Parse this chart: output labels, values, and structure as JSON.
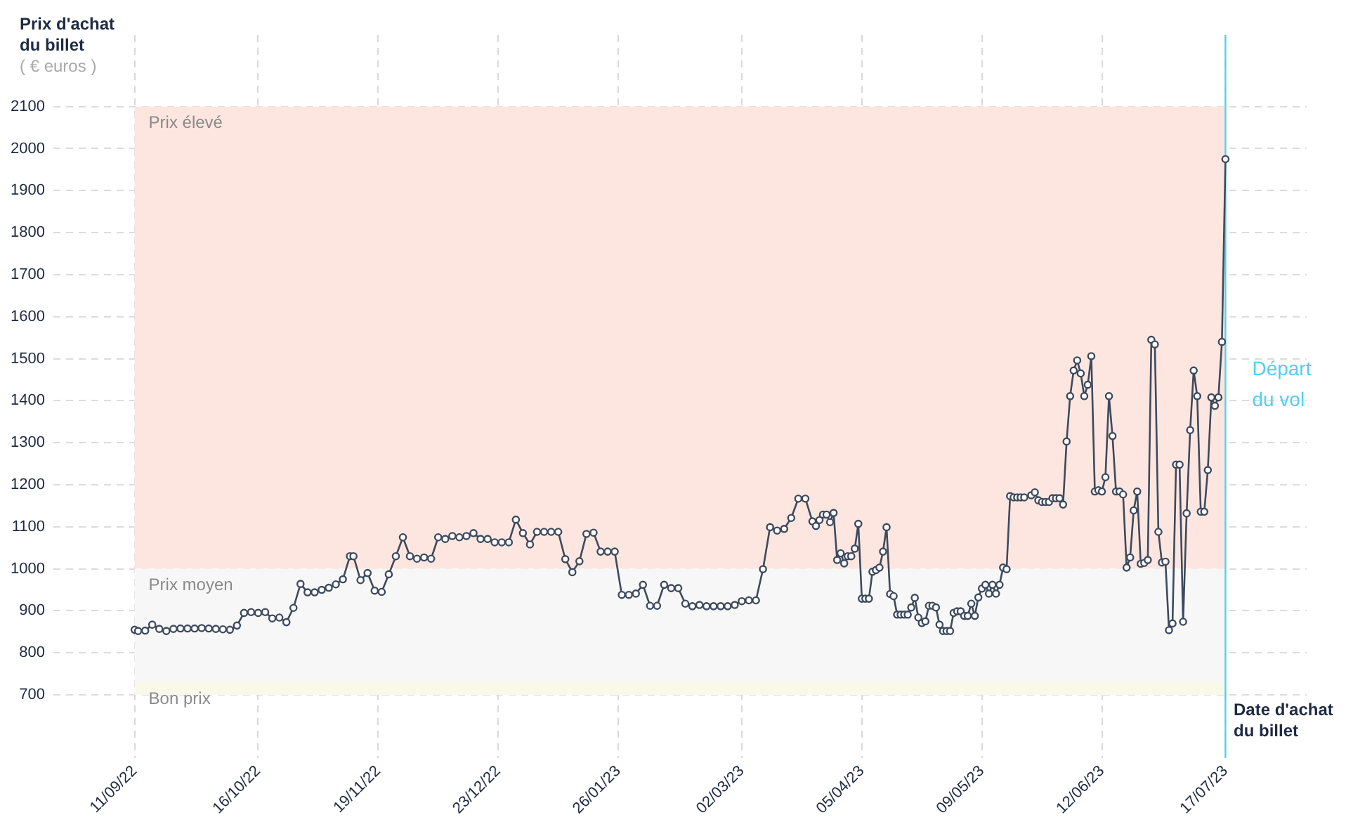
{
  "chart_data": {
    "type": "line",
    "ylabel": "Prix d'achat du billet",
    "xlabel": "Date d'achat du billet",
    "annotations": [
      "( € euros )"
    ],
    "x": [
      "2022-09-11",
      "2022-09-12",
      "2022-09-14",
      "2022-09-16",
      "2022-09-18",
      "2022-09-20",
      "2022-09-22",
      "2022-09-24",
      "2022-09-26",
      "2022-09-28",
      "2022-09-30",
      "2022-10-02",
      "2022-10-04",
      "2022-10-06",
      "2022-10-08",
      "2022-10-10",
      "2022-10-12",
      "2022-10-14",
      "2022-10-16",
      "2022-10-18",
      "2022-10-20",
      "2022-10-22",
      "2022-10-24",
      "2022-10-26",
      "2022-10-28",
      "2022-10-30",
      "2022-11-01",
      "2022-11-03",
      "2022-11-05",
      "2022-11-07",
      "2022-11-09",
      "2022-11-11",
      "2022-11-12",
      "2022-11-14",
      "2022-11-16",
      "2022-11-18",
      "2022-11-20",
      "2022-11-22",
      "2022-11-24",
      "2022-11-26",
      "2022-11-28",
      "2022-11-30",
      "2022-12-02",
      "2022-12-04",
      "2022-12-06",
      "2022-12-08",
      "2022-12-10",
      "2022-12-12",
      "2022-12-14",
      "2022-12-16",
      "2022-12-18",
      "2022-12-20",
      "2022-12-22",
      "2022-12-24",
      "2022-12-26",
      "2022-12-28",
      "2022-12-30",
      "2023-01-01",
      "2023-01-03",
      "2023-01-05",
      "2023-01-07",
      "2023-01-09",
      "2023-01-11",
      "2023-01-13",
      "2023-01-15",
      "2023-01-17",
      "2023-01-19",
      "2023-01-21",
      "2023-01-23",
      "2023-01-25",
      "2023-01-27",
      "2023-01-29",
      "2023-01-31",
      "2023-02-02",
      "2023-02-04",
      "2023-02-06",
      "2023-02-08",
      "2023-02-10",
      "2023-02-12",
      "2023-02-14",
      "2023-02-16",
      "2023-02-18",
      "2023-02-20",
      "2023-02-22",
      "2023-02-24",
      "2023-02-26",
      "2023-02-28",
      "2023-03-02",
      "2023-03-04",
      "2023-03-06",
      "2023-03-08",
      "2023-03-10",
      "2023-03-12",
      "2023-03-14",
      "2023-03-16",
      "2023-03-18",
      "2023-03-20",
      "2023-03-22",
      "2023-03-23",
      "2023-03-24",
      "2023-03-25",
      "2023-03-26",
      "2023-03-27",
      "2023-03-28",
      "2023-03-29",
      "2023-03-30",
      "2023-03-31",
      "2023-04-01",
      "2023-04-02",
      "2023-04-03",
      "2023-04-04",
      "2023-04-05",
      "2023-04-06",
      "2023-04-07",
      "2023-04-08",
      "2023-04-09",
      "2023-04-10",
      "2023-04-11",
      "2023-04-12",
      "2023-04-13",
      "2023-04-14",
      "2023-04-15",
      "2023-04-16",
      "2023-04-17",
      "2023-04-18",
      "2023-04-19",
      "2023-04-20",
      "2023-04-21",
      "2023-04-22",
      "2023-04-23",
      "2023-04-24",
      "2023-04-25",
      "2023-04-26",
      "2023-04-27",
      "2023-04-28",
      "2023-04-29",
      "2023-04-30",
      "2023-05-01",
      "2023-05-02",
      "2023-05-03",
      "2023-05-04",
      "2023-05-05",
      "2023-05-06",
      "2023-05-07",
      "2023-05-08",
      "2023-05-09",
      "2023-05-10",
      "2023-05-11",
      "2023-05-12",
      "2023-05-13",
      "2023-05-14",
      "2023-05-15",
      "2023-05-16",
      "2023-05-17",
      "2023-05-18",
      "2023-05-19",
      "2023-05-20",
      "2023-05-21",
      "2023-05-23",
      "2023-05-24",
      "2023-05-25",
      "2023-05-26",
      "2023-05-27",
      "2023-05-28",
      "2023-05-29",
      "2023-05-30",
      "2023-05-31",
      "2023-06-01",
      "2023-06-02",
      "2023-06-03",
      "2023-06-04",
      "2023-06-05",
      "2023-06-06",
      "2023-06-07",
      "2023-06-08",
      "2023-06-09",
      "2023-06-10",
      "2023-06-11",
      "2023-06-12",
      "2023-06-13",
      "2023-06-14",
      "2023-06-15",
      "2023-06-16",
      "2023-06-17",
      "2023-06-18",
      "2023-06-19",
      "2023-06-20",
      "2023-06-21",
      "2023-06-22",
      "2023-06-23",
      "2023-06-24",
      "2023-06-25",
      "2023-06-26",
      "2023-06-27",
      "2023-06-28",
      "2023-06-29",
      "2023-06-30",
      "2023-07-01",
      "2023-07-02",
      "2023-07-03",
      "2023-07-04",
      "2023-07-05",
      "2023-07-06",
      "2023-07-07",
      "2023-07-08",
      "2023-07-09",
      "2023-07-10",
      "2023-07-11",
      "2023-07-12",
      "2023-07-13",
      "2023-07-14",
      "2023-07-15",
      "2023-07-16",
      "2023-07-17"
    ],
    "series": [
      {
        "color": "#3d4a5e",
        "values": [
          855,
          852,
          853,
          867,
          857,
          852,
          857,
          858,
          858,
          858,
          859,
          858,
          857,
          856,
          855,
          865,
          895,
          897,
          895,
          897,
          882,
          884,
          873,
          907,
          964,
          944,
          944,
          950,
          955,
          963,
          975,
          1030,
          1030,
          973,
          990,
          948,
          945,
          987,
          1030,
          1075,
          1030,
          1024,
          1027,
          1024,
          1075,
          1071,
          1078,
          1075,
          1078,
          1085,
          1071,
          1071,
          1063,
          1063,
          1063,
          1117,
          1085,
          1058,
          1088,
          1088,
          1088,
          1088,
          1023,
          992,
          1018,
          1083,
          1086,
          1041,
          1041,
          1041,
          938,
          938,
          941,
          962,
          912,
          912,
          962,
          954,
          954,
          917,
          911,
          914,
          911,
          911,
          911,
          911,
          914,
          923,
          925,
          925,
          999,
          1099,
          1091,
          1095,
          1121,
          1167,
          1167,
          1113,
          1102,
          1116,
          1129,
          1129,
          1111,
          1133,
          1021,
          1037,
          1013,
          1030,
          1030,
          1048,
          1107,
          929,
          929,
          929,
          993,
          997,
          1003,
          1041,
          1099,
          940,
          935,
          891,
          891,
          891,
          891,
          908,
          931,
          884,
          871,
          875,
          912,
          912,
          908,
          867,
          852,
          852,
          852,
          895,
          899,
          899,
          888,
          888,
          917,
          888,
          932,
          953,
          962,
          941,
          962,
          941,
          962,
          1003,
          999,
          1173,
          1170,
          1170,
          1170,
          1170,
          1175,
          1182,
          1163,
          1159,
          1159,
          1159,
          1168,
          1168,
          1168,
          1153,
          1303,
          1411,
          1472,
          1496,
          1465,
          1411,
          1438,
          1506,
          1184,
          1187,
          1184,
          1218,
          1411,
          1316,
          1184,
          1184,
          1177,
          1003,
          1027,
          1139,
          1184,
          1012,
          1014,
          1021,
          1545,
          1534,
          1088,
          1015,
          1017,
          854,
          870,
          1248,
          1248,
          874,
          1132,
          1330,
          1472,
          1411,
          1136,
          1136,
          1235,
          1408,
          1388,
          1408,
          1540,
          1975
        ]
      }
    ],
    "xlim": [
      "2022-08-19",
      "2023-08-09"
    ],
    "xticks": [
      {
        "value": "2022-09-11",
        "label": "11/09/22"
      },
      {
        "value": "2022-10-16",
        "label": "16/10/22"
      },
      {
        "value": "2022-11-19",
        "label": "19/11/22"
      },
      {
        "value": "2022-12-23",
        "label": "23/12/22"
      },
      {
        "value": "2023-01-26",
        "label": "26/01/23"
      },
      {
        "value": "2023-03-02",
        "label": "02/03/23"
      },
      {
        "value": "2023-04-05",
        "label": "05/04/23"
      },
      {
        "value": "2023-05-09",
        "label": "09/05/23"
      },
      {
        "value": "2023-06-12",
        "label": "12/06/23"
      },
      {
        "value": "2023-07-17",
        "label": "17/07/23"
      }
    ],
    "ylim": [
      550,
      2270
    ],
    "yticks": [
      700,
      800,
      900,
      1000,
      1100,
      1200,
      1300,
      1400,
      1500,
      1600,
      1700,
      1800,
      1900,
      2000,
      2100
    ],
    "bands": [
      {
        "axis": "y",
        "from": 1000,
        "to": 2100,
        "label": "Prix élevé",
        "color": "#fde6df"
      },
      {
        "axis": "y",
        "from": 730,
        "to": 1000,
        "label": "Prix moyen",
        "color": "#f7f7f7"
      },
      {
        "axis": "y",
        "from": 700,
        "to": 730,
        "label": "Bon prix",
        "color": "#f9f9ea"
      }
    ],
    "ref_lines": [
      {
        "axis": "x",
        "value": "2023-07-17",
        "label": "Départ du vol",
        "color": "#4fd0ef"
      }
    ],
    "grid": true,
    "legend": false,
    "marker": "circle",
    "line_style": "solid"
  }
}
